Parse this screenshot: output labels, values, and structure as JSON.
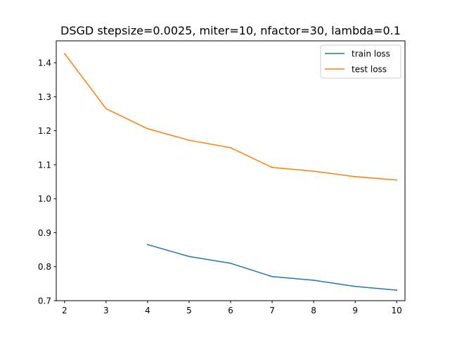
{
  "chart_data": {
    "type": "line",
    "title": "DSGD stepsize=0.0025, miter=10, nfactor=30, lambda=0.1",
    "xlabel": "",
    "ylabel": "",
    "xlim": [
      1.8,
      10.2
    ],
    "ylim": [
      0.7,
      1.4645
    ],
    "xticks": [
      2,
      3,
      4,
      5,
      6,
      7,
      8,
      9,
      10
    ],
    "yticks": [
      0.7,
      0.8,
      0.9,
      1.0,
      1.1,
      1.2,
      1.3,
      1.4
    ],
    "grid": false,
    "legend_position": "top-right",
    "series": [
      {
        "name": "train loss",
        "color": "#1f77b4",
        "x": [
          4,
          5,
          6,
          7,
          8,
          9,
          10
        ],
        "y": [
          0.865,
          0.83,
          0.81,
          0.771,
          0.76,
          0.742,
          0.731
        ]
      },
      {
        "name": "test loss",
        "color": "#ff7f0e",
        "x": [
          2,
          3,
          4,
          5,
          6,
          7,
          8,
          9,
          10
        ],
        "y": [
          1.427,
          1.265,
          1.206,
          1.172,
          1.15,
          1.092,
          1.081,
          1.065,
          1.055
        ]
      }
    ]
  }
}
